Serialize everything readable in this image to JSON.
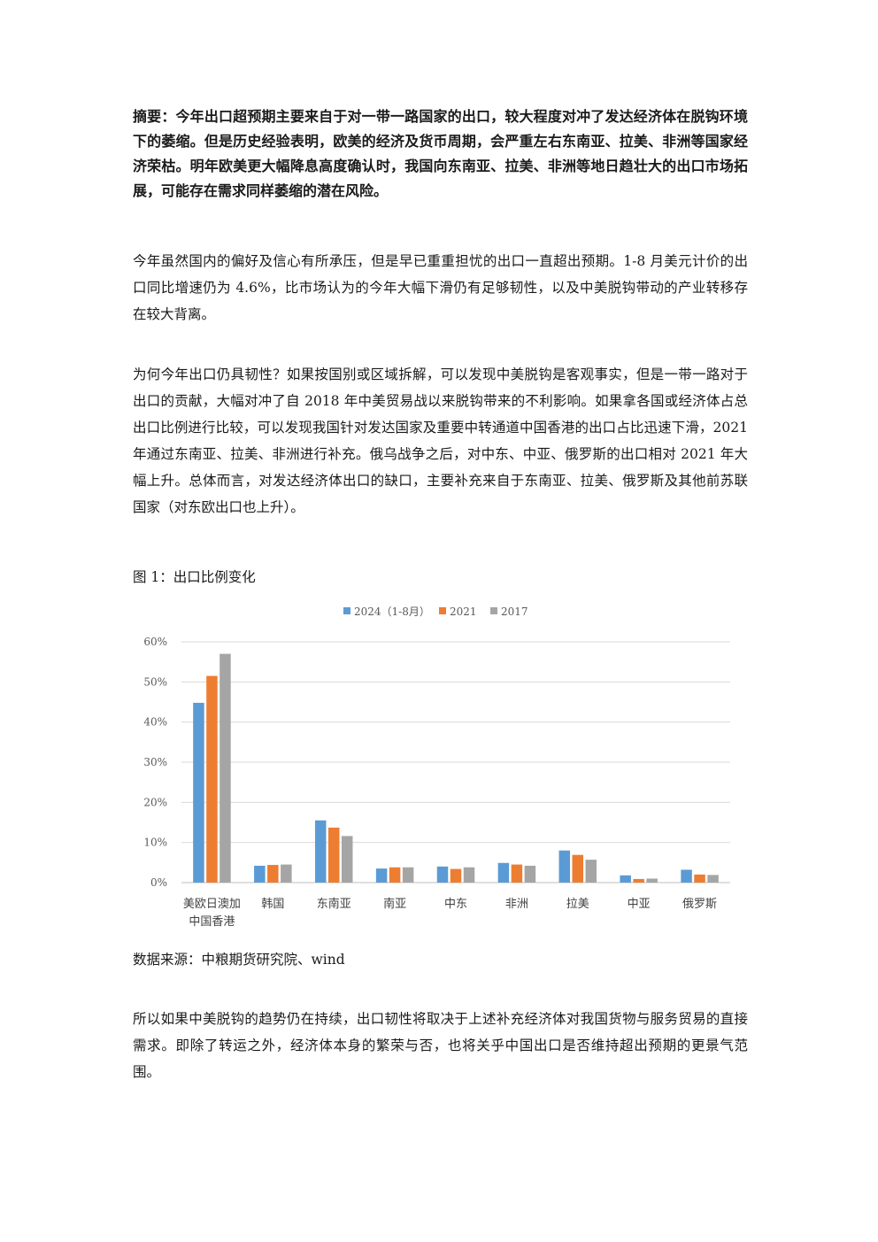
{
  "abstract": {
    "lead": "摘要：",
    "body": "今年出口超预期主要来自于对一带一路国家的出口，较大程度对冲了发达经济体在脱钩环境下的萎缩。但是历史经验表明，欧美的经济及货币周期，会严重左右东南亚、拉美、非洲等国家经济荣枯。明年欧美更大幅降息高度确认时，我国向东南亚、拉美、非洲等地日趋壮大的出口市场拓展，可能存在需求同样萎缩的潜在风险。"
  },
  "paragraphs": [
    "今年虽然国内的偏好及信心有所承压，但是早已重重担忧的出口一直超出预期。1-8 月美元计价的出口同比增速仍为 4.6%，比市场认为的今年大幅下滑仍有足够韧性，以及中美脱钩带动的产业转移存在较大背离。",
    "为何今年出口仍具韧性？如果按国别或区域拆解，可以发现中美脱钩是客观事实，但是一带一路对于出口的贡献，大幅对冲了自 2018 年中美贸易战以来脱钩带来的不利影响。如果拿各国或经济体占总出口比例进行比较，可以发现我国针对发达国家及重要中转通道中国香港的出口占比迅速下滑，2021 年通过东南亚、拉美、非洲进行补充。俄乌战争之后，对中东、中亚、俄罗斯的出口相对 2021 年大幅上升。总体而言，对发达经济体出口的缺口，主要补充来自于东南亚、拉美、俄罗斯及其他前苏联国家（对东欧出口也上升）。",
    "所以如果中美脱钩的趋势仍在持续，出口韧性将取决于上述补充经济体对我国货物与服务贸易的直接需求。即除了转运之外，经济体本身的繁荣与否，也将关乎中国出口是否维持超出预期的更景气范围。"
  ],
  "figure": {
    "caption": "图 1：出口比例变化",
    "source": "数据来源：中粮期货研究院、wind"
  },
  "chart_data": {
    "type": "bar",
    "categories": [
      "美欧日澳加\n中国香港",
      "韩国",
      "东南亚",
      "南亚",
      "中东",
      "非洲",
      "拉美",
      "中亚",
      "俄罗斯"
    ],
    "series": [
      {
        "name": "2024（1-8月）",
        "color": "#5b9bd5",
        "values": [
          44.8,
          4.2,
          15.5,
          3.5,
          4.0,
          4.9,
          8.0,
          1.8,
          3.2
        ]
      },
      {
        "name": "2021",
        "color": "#ed7d31",
        "values": [
          51.5,
          4.4,
          13.7,
          3.8,
          3.4,
          4.5,
          6.9,
          0.9,
          2.0
        ]
      },
      {
        "name": "2017",
        "color": "#a5a5a5",
        "values": [
          57.0,
          4.5,
          11.6,
          3.8,
          3.8,
          4.2,
          5.7,
          1.0,
          1.9
        ]
      }
    ],
    "yticks": [
      "0%",
      "10%",
      "20%",
      "30%",
      "40%",
      "50%",
      "60%"
    ],
    "ylim": [
      0,
      60
    ],
    "grid": true,
    "legend": "top"
  }
}
